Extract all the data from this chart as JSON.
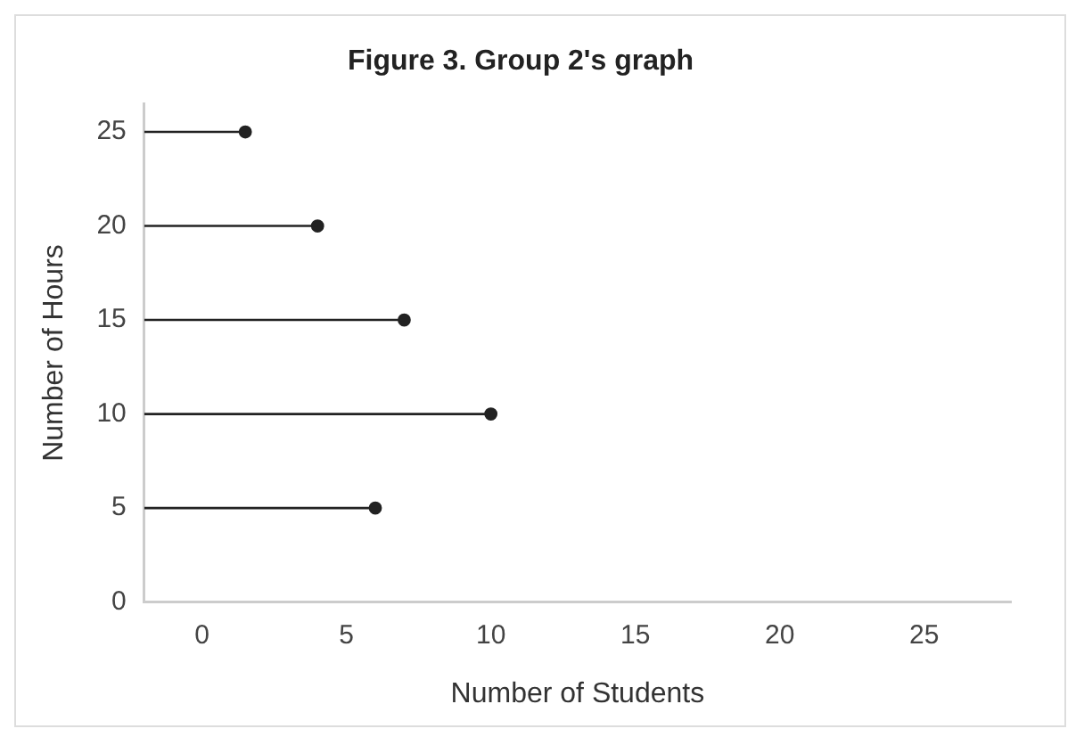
{
  "chart_data": {
    "type": "scatter",
    "title": "Figure 3. Group 2's graph",
    "xlabel": "Number of Students",
    "ylabel": "Number of Hours",
    "series": [
      {
        "type": "line",
        "marker": "none",
        "color": "#222222",
        "x": [
          -2,
          1.5
        ],
        "values": [
          25,
          25
        ]
      },
      {
        "type": "line",
        "marker": "none",
        "color": "#222222",
        "x": [
          -2,
          4
        ],
        "values": [
          20,
          20
        ]
      },
      {
        "type": "line",
        "marker": "none",
        "color": "#222222",
        "x": [
          -2,
          7
        ],
        "values": [
          15,
          15
        ]
      },
      {
        "type": "line",
        "marker": "none",
        "color": "#222222",
        "x": [
          -2,
          10
        ],
        "values": [
          10,
          10
        ]
      },
      {
        "type": "line",
        "marker": "none",
        "color": "#222222",
        "x": [
          -2,
          6
        ],
        "values": [
          5,
          5
        ]
      },
      {
        "color": "#222222",
        "x": [
          1.5,
          4,
          7,
          10,
          6
        ],
        "values": [
          25,
          20,
          15,
          10,
          5
        ]
      }
    ],
    "xlim": [
      -2,
      28
    ],
    "xticks": [
      0,
      5,
      10,
      15,
      20,
      25
    ],
    "ylim": [
      0,
      26.5
    ],
    "yticks": [
      0,
      5,
      10,
      15,
      20,
      25
    ],
    "grid": false,
    "legend": false,
    "marker": "circle"
  }
}
